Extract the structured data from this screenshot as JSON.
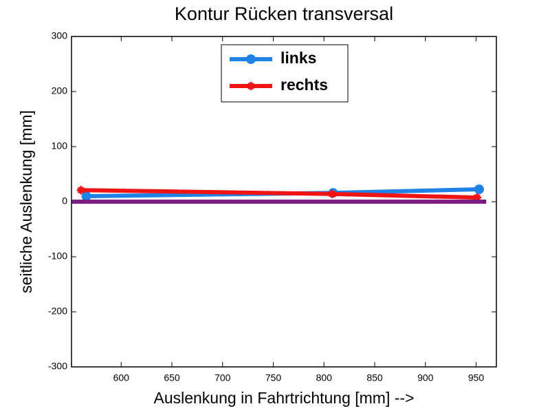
{
  "chart_data": {
    "type": "line",
    "title": "Kontur Rücken transversal",
    "xlabel": "Auslenkung in Fahrtrichtung [mm] -->",
    "ylabel": "seitliche Auslenkung [mm]",
    "series": [
      {
        "name": "links",
        "color": "#1e82e6",
        "marker": "circle",
        "x": [
          565.6,
          809,
          953
        ],
        "values": [
          10,
          16,
          22.5
        ]
      },
      {
        "name": "rechts",
        "color": "#f01414",
        "marker": "star",
        "x": [
          560.3,
          808,
          951
        ],
        "values": [
          21,
          14,
          7.5
        ]
      },
      {
        "color": "#7d1e82",
        "x": [
          551,
          960
        ],
        "values": [
          0,
          0
        ]
      }
    ],
    "xlim": [
      551,
      970
    ],
    "ylim": [
      -300,
      300
    ],
    "xticks": [
      600,
      650,
      700,
      750,
      800,
      850,
      900,
      950
    ],
    "yticks": [
      -300,
      -200,
      -100,
      0,
      100,
      200,
      300
    ],
    "legend": "top"
  }
}
